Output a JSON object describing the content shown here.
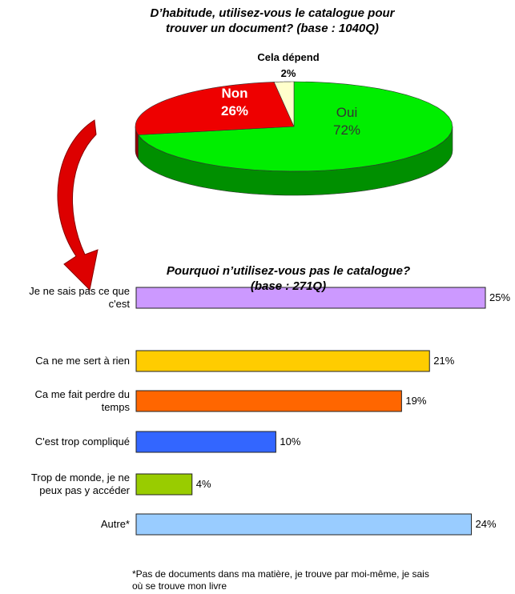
{
  "chart_data": [
    {
      "type": "pie",
      "title": "D’habitude, utilisez-vous le catalogue pour\ntrouver un document? (base : 1040Q)",
      "categories": [
        "Oui",
        "Non",
        "Cela dépend"
      ],
      "values": [
        72,
        26,
        2
      ],
      "value_labels": [
        "72%",
        "26%",
        "2%"
      ],
      "colors": [
        "#00ee00",
        "#ee0000",
        "#ffffcc"
      ]
    },
    {
      "type": "hbar",
      "title": "Pourquoi n’utilisez-vous pas le catalogue?\n(base : 271Q)",
      "categories": [
        "Je ne sais pas ce que\nc'est",
        "Ca ne me sert à rien",
        "Ca me fait perdre du\ntemps",
        "C'est trop compliqué",
        "Trop de monde, je ne\npeux pas y accéder",
        "Autre*"
      ],
      "values": [
        25,
        21,
        19,
        10,
        4,
        24
      ],
      "value_labels": [
        "25%",
        "21%",
        "19%",
        "10%",
        "4%",
        "24%"
      ],
      "colors": [
        "#cc99ff",
        "#ffcc00",
        "#ff6600",
        "#3366ff",
        "#99cc00",
        "#99ccff"
      ]
    }
  ],
  "footnote": "*Pas de documents dans ma matière, je trouve par moi-même, je sais\noù se trouve mon livre"
}
